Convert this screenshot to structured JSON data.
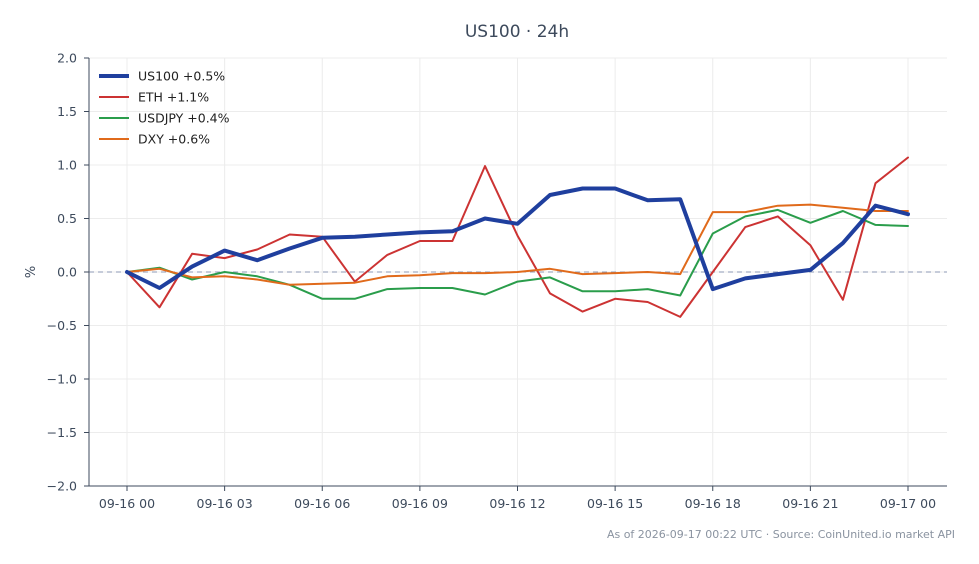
{
  "chart_data": {
    "type": "line",
    "title": "US100 · 24h",
    "xlabel": "",
    "ylabel": "%",
    "ylim": [
      -2.0,
      2.0
    ],
    "yticks": [
      "2.0",
      "1.5",
      "1.0",
      "0.5",
      "0.0",
      "−0.5",
      "−1.0",
      "−1.5",
      "−2.0"
    ],
    "xticks": [
      "09-16 00",
      "09-16 03",
      "09-16 06",
      "09-16 09",
      "09-16 12",
      "09-16 15",
      "09-16 18",
      "09-16 21",
      "09-17 00"
    ],
    "x_hours": [
      0,
      1,
      2,
      3,
      4,
      5,
      6,
      7,
      8,
      9,
      10,
      11,
      12,
      13,
      14,
      15,
      16,
      17,
      18,
      19,
      20,
      21,
      22,
      23,
      24
    ],
    "grid": true,
    "zero_line": true,
    "legend_position": "top-left",
    "series": [
      {
        "name": "US100 +0.5%",
        "color": "#1f3f9e",
        "values": [
          0.0,
          -0.15,
          0.05,
          0.2,
          0.11,
          0.22,
          0.32,
          0.33,
          0.35,
          0.37,
          0.38,
          0.5,
          0.45,
          0.72,
          0.78,
          0.78,
          0.67,
          0.68,
          -0.16,
          -0.06,
          -0.02,
          0.02,
          0.27,
          0.62,
          0.54
        ]
      },
      {
        "name": "ETH +1.1%",
        "color": "#cc3333",
        "values": [
          0.0,
          -0.33,
          0.17,
          0.13,
          0.21,
          0.35,
          0.33,
          -0.09,
          0.16,
          0.29,
          0.29,
          0.99,
          0.34,
          -0.2,
          -0.37,
          -0.25,
          -0.28,
          -0.42,
          0.0,
          0.42,
          0.52,
          0.25,
          -0.26,
          0.83,
          1.07
        ]
      },
      {
        "name": "USDJPY +0.4%",
        "color": "#2a9d4b",
        "values": [
          0.0,
          0.04,
          -0.07,
          0.0,
          -0.04,
          -0.12,
          -0.25,
          -0.25,
          -0.16,
          -0.15,
          -0.15,
          -0.21,
          -0.09,
          -0.05,
          -0.18,
          -0.18,
          -0.16,
          -0.22,
          0.36,
          0.52,
          0.58,
          0.46,
          0.57,
          0.44,
          0.43
        ]
      },
      {
        "name": "DXY +0.6%",
        "color": "#e06a1b",
        "values": [
          0.0,
          0.03,
          -0.05,
          -0.04,
          -0.07,
          -0.12,
          -0.11,
          -0.1,
          -0.04,
          -0.03,
          -0.01,
          -0.01,
          0.0,
          0.03,
          -0.02,
          -0.01,
          0.0,
          -0.02,
          0.56,
          0.56,
          0.62,
          0.63,
          0.6,
          0.57,
          0.57
        ]
      }
    ],
    "footer": "As of 2026-09-17 00:22 UTC · Source: CoinUnited.io market API"
  }
}
